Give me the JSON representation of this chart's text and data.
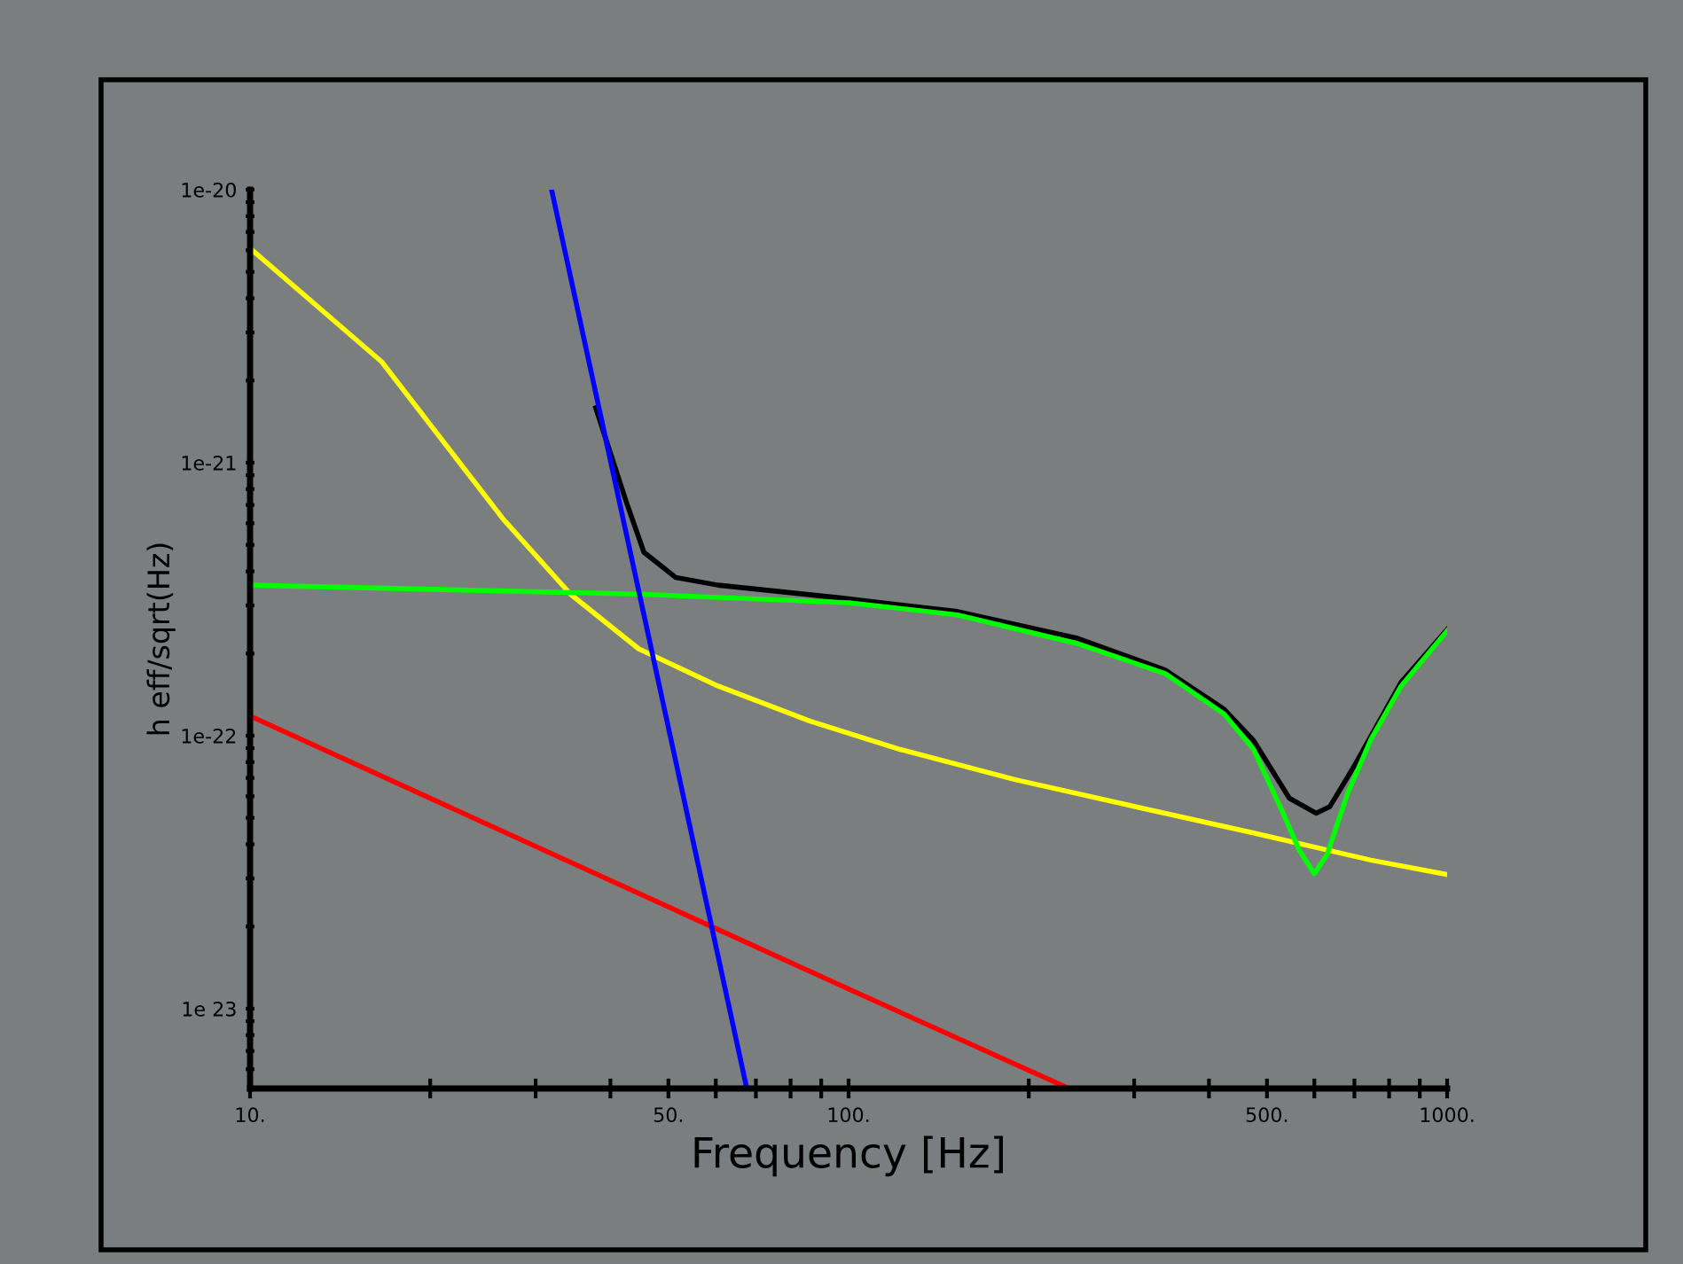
{
  "chart_data": {
    "type": "line",
    "xlabel": "Frequency [Hz]",
    "ylabel": "h eff/sqrt(Hz)",
    "log": "xy",
    "grid": false,
    "legend": false,
    "line_style": "solid",
    "marker": "none",
    "xlim": [
      10,
      1000
    ],
    "ylim": [
      5.1e-24,
      1e-20
    ],
    "xticks": [
      {
        "value": 10,
        "label": "10."
      },
      {
        "value": 20,
        "label": null
      },
      {
        "value": 30,
        "label": null
      },
      {
        "value": 40,
        "label": null
      },
      {
        "value": 50,
        "label": "50."
      },
      {
        "value": 60,
        "label": null
      },
      {
        "value": 70,
        "label": null
      },
      {
        "value": 80,
        "label": null
      },
      {
        "value": 90,
        "label": null
      },
      {
        "value": 100,
        "label": "100."
      },
      {
        "value": 200,
        "label": null
      },
      {
        "value": 300,
        "label": null
      },
      {
        "value": 400,
        "label": null
      },
      {
        "value": 500,
        "label": "500."
      },
      {
        "value": 600,
        "label": null
      },
      {
        "value": 700,
        "label": null
      },
      {
        "value": 800,
        "label": null
      },
      {
        "value": 900,
        "label": null
      },
      {
        "value": 1000,
        "label": "1000."
      }
    ],
    "yticks": [
      {
        "value": 6e-24,
        "label": null
      },
      {
        "value": 7e-24,
        "label": null
      },
      {
        "value": 8e-24,
        "label": null
      },
      {
        "value": 9e-24,
        "label": null
      },
      {
        "value": 1e-23,
        "label": "1e 23"
      },
      {
        "value": 2e-23,
        "label": null
      },
      {
        "value": 3e-23,
        "label": null
      },
      {
        "value": 4e-23,
        "label": null
      },
      {
        "value": 5e-23,
        "label": null
      },
      {
        "value": 6e-23,
        "label": null
      },
      {
        "value": 7e-23,
        "label": null
      },
      {
        "value": 8e-23,
        "label": null
      },
      {
        "value": 9e-23,
        "label": null
      },
      {
        "value": 1e-22,
        "label": "1e-22"
      },
      {
        "value": 2e-22,
        "label": null
      },
      {
        "value": 3e-22,
        "label": null
      },
      {
        "value": 4e-22,
        "label": null
      },
      {
        "value": 5e-22,
        "label": null
      },
      {
        "value": 6e-22,
        "label": null
      },
      {
        "value": 7e-22,
        "label": null
      },
      {
        "value": 8e-22,
        "label": null
      },
      {
        "value": 9e-22,
        "label": null
      },
      {
        "value": 1e-21,
        "label": "1e-21"
      },
      {
        "value": 2e-21,
        "label": null
      },
      {
        "value": 3e-21,
        "label": null
      },
      {
        "value": 4e-21,
        "label": null
      },
      {
        "value": 5e-21,
        "label": null
      },
      {
        "value": 6e-21,
        "label": null
      },
      {
        "value": 7e-21,
        "label": null
      },
      {
        "value": 8e-21,
        "label": null
      },
      {
        "value": 9e-21,
        "label": null
      },
      {
        "value": 1e-20,
        "label": "1e-20"
      }
    ],
    "series": [
      {
        "color": "#000000",
        "x": [
          37.8,
          42.5,
          45.5,
          51.4,
          60.5,
          96.4,
          152,
          240,
          338,
          424,
          475,
          545,
          604,
          637,
          696,
          838,
          1000
        ],
        "values": [
          1.59e-21,
          7.2e-22,
          4.7e-22,
          3.8e-22,
          3.56e-22,
          3.2e-22,
          2.85e-22,
          2.28e-22,
          1.74e-22,
          1.25e-22,
          9.6e-23,
          5.9e-23,
          5.2e-23,
          5.5e-23,
          7.6e-23,
          1.57e-22,
          2.45e-22
        ]
      },
      {
        "color": "#ffff00",
        "x": [
          10,
          16.6,
          26.5,
          34.3,
          44.6,
          60.5,
          86.3,
          122,
          190,
          301,
          475,
          746,
          1000
        ],
        "values": [
          6.1e-21,
          2.34e-21,
          6.2e-22,
          3.3e-22,
          2.08e-22,
          1.52e-22,
          1.13e-22,
          8.9e-23,
          6.9e-23,
          5.5e-23,
          4.4e-23,
          3.5e-23,
          3.1e-23
        ]
      },
      {
        "color": "#00ff00",
        "x": [
          10,
          44.6,
          100,
          152,
          240,
          338,
          424,
          475,
          530,
          567,
          600,
          630,
          683,
          746,
          838,
          1000
        ],
        "values": [
          3.56e-22,
          3.3e-22,
          3.07e-22,
          2.77e-22,
          2.18e-22,
          1.69e-22,
          1.2e-22,
          8.9e-23,
          5.3e-23,
          3.78e-23,
          3.12e-23,
          3.67e-23,
          6.2e-23,
          9.7e-23,
          1.52e-22,
          2.42e-22
        ]
      },
      {
        "color": "#ff0000",
        "x": [
          10,
          100,
          229
        ],
        "values": [
          1.18e-22,
          1.18e-23,
          5.2e-24
        ]
      },
      {
        "color": "#0000ff",
        "x": [
          31.9,
          67.6
        ],
        "values": [
          1e-20,
          5.1e-24
        ]
      }
    ]
  }
}
